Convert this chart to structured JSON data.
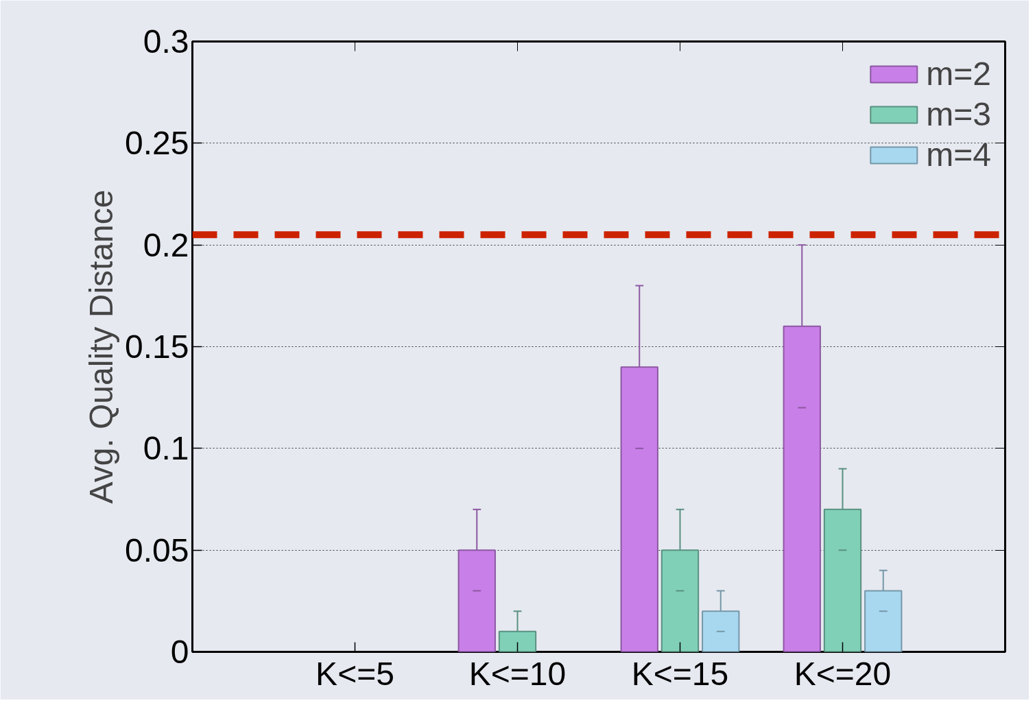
{
  "chart_data": {
    "type": "bar",
    "ylabel": "Avg. Quality Distance",
    "categories": [
      "K<=5",
      "K<=10",
      "K<=15",
      "K<=20"
    ],
    "series": [
      {
        "name": "m=2",
        "color": "#c97fe8",
        "values": [
          null,
          0.05,
          0.14,
          0.16
        ],
        "errors": [
          null,
          0.02,
          0.04,
          0.04
        ]
      },
      {
        "name": "m=3",
        "color": "#80d0b8",
        "values": [
          null,
          0.01,
          0.05,
          0.07
        ],
        "errors": [
          null,
          0.01,
          0.02,
          0.02
        ]
      },
      {
        "name": "m=4",
        "color": "#a8d8f0",
        "values": [
          null,
          null,
          0.02,
          0.03
        ],
        "errors": [
          null,
          null,
          0.01,
          0.01
        ]
      }
    ],
    "ylim": [
      0,
      0.3
    ],
    "yticks": [
      0,
      0.05,
      0.1,
      0.15,
      0.2,
      0.25,
      0.3
    ],
    "ref_lines": [
      {
        "axis": "y",
        "value": 0.205,
        "label": null,
        "color": "#cc2200",
        "line_style": "dashed"
      }
    ],
    "grid": "y",
    "legend": "top right"
  }
}
